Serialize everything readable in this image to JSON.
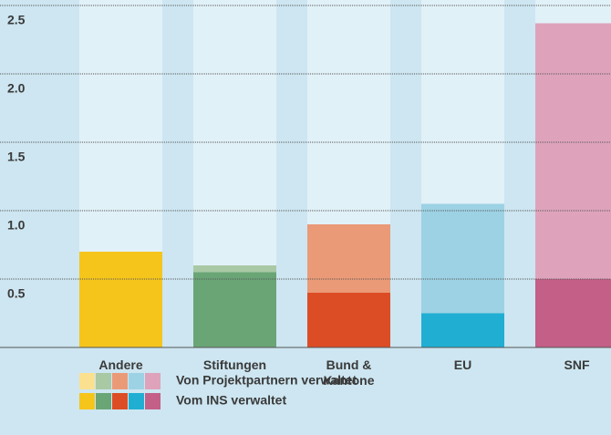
{
  "chart_data": {
    "type": "stacked-bar",
    "categories": [
      "Andere",
      "Stiftungen",
      "Bund & Kantone",
      "EU",
      "SNF"
    ],
    "series": [
      {
        "name": "Vom INS verwaltet",
        "colors": [
          "#f5c51c",
          "#6aa576",
          "#dc4d25",
          "#20afd3",
          "#c45f88"
        ],
        "values": [
          0.7,
          0.55,
          0.4,
          0.25,
          0.5
        ]
      },
      {
        "name": "Von Projektpartnern verwaltet",
        "colors": [
          "#fbe08f",
          "#a9c9a5",
          "#eb9a78",
          "#9dd2e4",
          "#dea3bb"
        ],
        "values": [
          0,
          0.05,
          0.5,
          0.8,
          1.87
        ]
      }
    ],
    "legend_order": [
      1,
      0
    ],
    "ylim": [
      0,
      2.5
    ],
    "yticks": [
      0.5,
      {
        "value": 1,
        "label": "1.0"
      },
      1.5,
      {
        "value": 2,
        "label": "2.0"
      },
      2.5
    ],
    "grid": true
  }
}
